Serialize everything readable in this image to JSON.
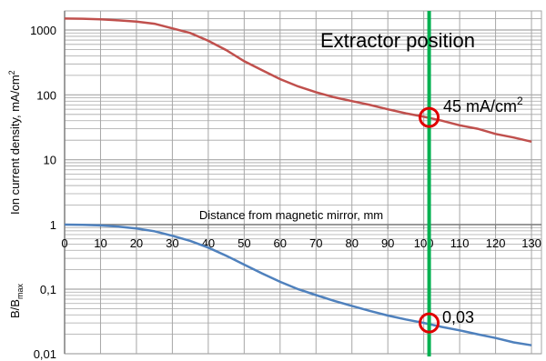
{
  "chart_data": [
    {
      "type": "line",
      "ylabel": "Ion current density, mA/cm",
      "ylabel_sup": "2",
      "yscale": "log",
      "ylim": [
        1,
        1500
      ],
      "yticks": [
        {
          "value": 1,
          "label": "1"
        },
        {
          "value": 10,
          "label": "10"
        },
        {
          "value": 100,
          "label": "100"
        },
        {
          "value": 1000,
          "label": "1000"
        }
      ],
      "xlim": [
        0,
        131
      ],
      "series": [
        {
          "color": "#c0504d",
          "points": [
            [
              0,
              1500
            ],
            [
              5,
              1490
            ],
            [
              10,
              1460
            ],
            [
              15,
              1410
            ],
            [
              20,
              1350
            ],
            [
              25,
              1250
            ],
            [
              30,
              1060
            ],
            [
              35,
              900
            ],
            [
              40,
              680
            ],
            [
              45,
              490
            ],
            [
              50,
              330
            ],
            [
              55,
              240
            ],
            [
              60,
              175
            ],
            [
              65,
              135
            ],
            [
              70,
              110
            ],
            [
              75,
              92
            ],
            [
              80,
              80
            ],
            [
              85,
              70
            ],
            [
              90,
              60
            ],
            [
              95,
              52
            ],
            [
              100,
              46
            ],
            [
              105,
              40
            ],
            [
              110,
              34
            ],
            [
              115,
              30
            ],
            [
              120,
              25
            ],
            [
              125,
              22
            ],
            [
              130,
              19
            ]
          ]
        }
      ],
      "annotations": {
        "position_label": "Extractor position",
        "marker_x": 101.5,
        "marker_y": 45,
        "marker_label": "45 mA/cm",
        "marker_label_sup": "2"
      },
      "colors": {
        "grid": "#a6a6a6",
        "marker_line": "#00b050",
        "marker_circle": "#e00000"
      }
    },
    {
      "type": "line",
      "xlabel": "Distance from magnetic mirror, mm",
      "ylabel": "B/B",
      "ylabel_sub": "max",
      "yscale": "log",
      "ylim": [
        0.01,
        1
      ],
      "yticks": [
        {
          "value": 1,
          "label": "1"
        },
        {
          "value": 0.1,
          "label": "0,1"
        },
        {
          "value": 0.01,
          "label": "0,01"
        }
      ],
      "xlim": [
        0,
        131
      ],
      "xticks": [
        0,
        10,
        20,
        30,
        40,
        50,
        60,
        70,
        80,
        90,
        100,
        110,
        120,
        130
      ],
      "series": [
        {
          "color": "#4f81bd",
          "points": [
            [
              0,
              1.0
            ],
            [
              5,
              0.99
            ],
            [
              10,
              0.97
            ],
            [
              15,
              0.93
            ],
            [
              20,
              0.87
            ],
            [
              25,
              0.79
            ],
            [
              30,
              0.67
            ],
            [
              35,
              0.56
            ],
            [
              40,
              0.44
            ],
            [
              45,
              0.33
            ],
            [
              50,
              0.24
            ],
            [
              55,
              0.175
            ],
            [
              60,
              0.13
            ],
            [
              65,
              0.1
            ],
            [
              70,
              0.081
            ],
            [
              75,
              0.066
            ],
            [
              80,
              0.055
            ],
            [
              85,
              0.046
            ],
            [
              90,
              0.039
            ],
            [
              95,
              0.034
            ],
            [
              100,
              0.03
            ],
            [
              105,
              0.026
            ],
            [
              110,
              0.023
            ],
            [
              115,
              0.02
            ],
            [
              120,
              0.0175
            ],
            [
              125,
              0.015
            ],
            [
              130,
              0.0135
            ]
          ]
        }
      ],
      "annotations": {
        "marker_x": 101.5,
        "marker_y": 0.03,
        "marker_label": "0,03"
      },
      "colors": {
        "grid": "#a6a6a6",
        "marker_line": "#00b050",
        "marker_circle": "#e00000"
      }
    }
  ]
}
